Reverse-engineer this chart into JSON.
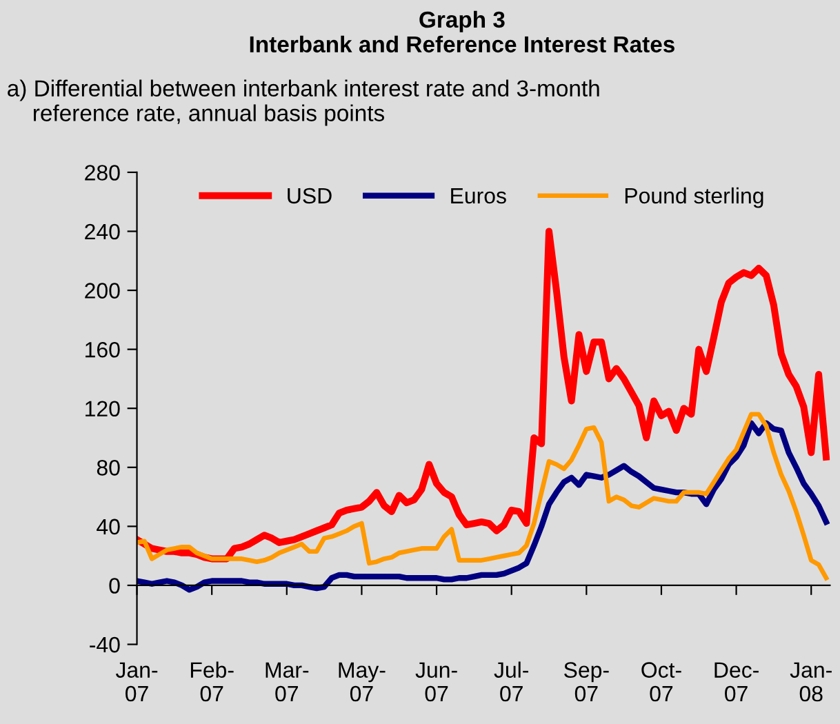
{
  "chart_data": {
    "type": "line",
    "title": "Graph 3\nInterbank and Reference Interest Rates",
    "subtitle": "a) Differential between interbank interest rate and 3-month\n    reference rate, annual basis points",
    "categories": [
      "Jan-\n07",
      null,
      null,
      null,
      null,
      null,
      null,
      null,
      null,
      null,
      "Feb-\n07",
      null,
      null,
      null,
      null,
      null,
      null,
      null,
      null,
      null,
      "Mar-\n07",
      null,
      null,
      null,
      null,
      null,
      null,
      null,
      null,
      null,
      "May-\n07",
      null,
      null,
      null,
      null,
      null,
      null,
      null,
      null,
      null,
      "Jun-\n07",
      null,
      null,
      null,
      null,
      null,
      null,
      null,
      null,
      null,
      "Jul-\n07",
      null,
      null,
      null,
      null,
      null,
      null,
      null,
      null,
      null,
      "Sep-\n07",
      null,
      null,
      null,
      null,
      null,
      null,
      null,
      null,
      null,
      "Oct-\n07",
      null,
      null,
      null,
      null,
      null,
      null,
      null,
      null,
      null,
      "Dec-\n07",
      null,
      null,
      null,
      null,
      null,
      null,
      null,
      null,
      null,
      "Jan-\n08",
      null,
      null
    ],
    "ylim": [
      -40,
      280
    ],
    "yticks": [
      -40,
      0,
      40,
      80,
      120,
      160,
      200,
      240,
      280
    ],
    "legend": "top",
    "marker": "none",
    "line_style": "solid",
    "series": [
      {
        "name": "USD",
        "color": "#ff0000",
        "values": [
          31,
          28,
          25,
          24,
          23,
          23,
          22,
          22,
          21,
          19,
          18,
          18,
          18,
          25,
          26,
          28,
          31,
          34,
          32,
          29,
          30,
          31,
          33,
          35,
          37,
          39,
          41,
          49,
          51,
          52,
          53,
          57,
          63,
          54,
          50,
          61,
          56,
          58,
          65,
          82,
          69,
          63,
          60,
          48,
          41,
          42,
          43,
          42,
          37,
          41,
          51,
          50,
          42,
          100,
          96,
          240,
          200,
          155,
          125,
          170,
          145,
          165,
          165,
          140,
          147,
          140,
          131,
          122,
          100,
          125,
          115,
          118,
          105,
          120,
          116,
          160,
          145,
          168,
          192,
          205,
          209,
          212,
          210,
          215,
          210,
          190,
          157,
          143,
          135,
          121,
          90,
          143,
          87
        ]
      },
      {
        "name": "Euros",
        "color": "#000080",
        "values": [
          3,
          2,
          1,
          2,
          3,
          2,
          0,
          -3,
          -1,
          2,
          3,
          3,
          3,
          3,
          3,
          2,
          2,
          1,
          1,
          1,
          1,
          0,
          0,
          -1,
          -2,
          -1,
          5,
          7,
          7,
          6,
          6,
          6,
          6,
          6,
          6,
          6,
          5,
          5,
          5,
          5,
          5,
          4,
          4,
          5,
          5,
          6,
          7,
          7,
          7,
          8,
          10,
          12,
          15,
          27,
          40,
          55,
          63,
          70,
          73,
          68,
          75,
          74,
          73,
          75,
          78,
          81,
          77,
          74,
          70,
          66,
          65,
          64,
          63,
          63,
          62,
          62,
          55,
          65,
          72,
          82,
          87,
          95,
          110,
          103,
          110,
          106,
          105,
          90,
          80,
          69,
          62,
          54,
          43
        ]
      },
      {
        "name": "Pound sterling",
        "color": "#ff9900",
        "values": [
          29,
          30,
          18,
          21,
          24,
          25,
          26,
          26,
          22,
          20,
          18,
          18,
          18,
          18,
          18,
          17,
          16,
          17,
          19,
          22,
          24,
          26,
          28,
          23,
          23,
          32,
          33,
          35,
          37,
          40,
          42,
          15,
          16,
          18,
          19,
          22,
          23,
          24,
          25,
          25,
          25,
          33,
          38,
          17,
          17,
          17,
          17,
          18,
          19,
          20,
          21,
          22,
          27,
          42,
          63,
          84,
          82,
          79,
          85,
          95,
          106,
          107,
          97,
          57,
          60,
          58,
          54,
          53,
          56,
          59,
          58,
          57,
          57,
          63,
          63,
          63,
          62,
          70,
          78,
          86,
          92,
          104,
          116,
          116,
          108,
          90,
          75,
          64,
          50,
          34,
          17,
          14,
          5
        ]
      }
    ]
  }
}
